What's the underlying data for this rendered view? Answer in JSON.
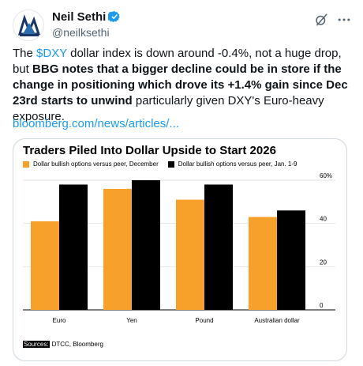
{
  "tweet": {
    "author_name": "Neil Sethi",
    "handle": "@neilksethi",
    "text_pre": "The ",
    "cashtag": "$DXY",
    "text_mid": " dollar index is down around -0.4%, not a huge drop, but ",
    "bold_1": "BBG notes that a bigger decline could be in store if the change in positioning which drove its +1.4% gain since Dec 23rd starts to unwind",
    "text_post": " particularly given DXY's Euro-heavy exposure.",
    "link": "bloomberg.com/news/articles/..."
  },
  "icons": {
    "verified": "verified-badge-icon",
    "grok": "grok-icon",
    "more": "more-icon"
  },
  "colors": {
    "accent": "#1d9bf0",
    "series_december": "#f7a12b",
    "series_january": "#000000"
  },
  "chart_data": {
    "type": "bar",
    "title": "Traders Piled Into Dollar Upside to Start 2026",
    "categories": [
      "Euro",
      "Yen",
      "Pound",
      "Australian dollar"
    ],
    "series": [
      {
        "name": "Dollar bullish options versus peer, December",
        "values": [
          41,
          56,
          51,
          43
        ]
      },
      {
        "name": "Dollar bullish options versus peer, Jan. 1-9",
        "values": [
          58,
          60,
          58,
          46
        ]
      }
    ],
    "ylim": [
      0,
      60
    ],
    "yticks": [
      "0",
      "20",
      "40",
      "60%"
    ],
    "source_label": "Sources:",
    "source_text": "DTCC, Bloomberg"
  }
}
